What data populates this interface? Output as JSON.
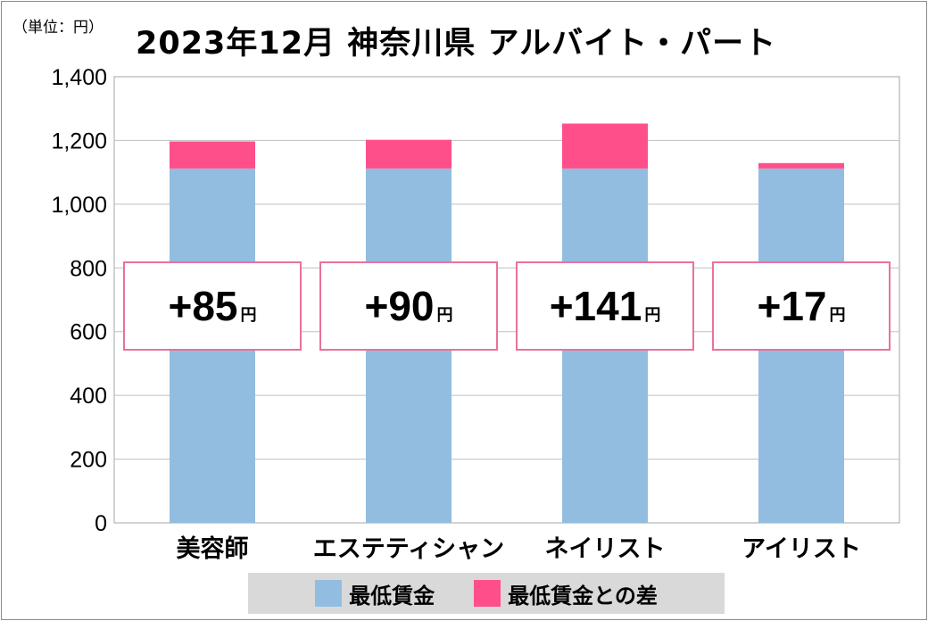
{
  "unit_label": "（単位：円）",
  "title": "2023年12月 神奈川県 アルバイト・パート",
  "colors": {
    "base": "#92bde0",
    "diff": "#ff4f8b",
    "grid": "#bfbfbf",
    "box_border": "#e8729e",
    "legend_bg": "#d9d9d9"
  },
  "chart_data": {
    "type": "bar",
    "stacked": true,
    "title": "2023年12月 神奈川県 アルバイト・パート",
    "ylabel": "（単位：円）",
    "ylim": [
      0,
      1400
    ],
    "yticks": [
      0,
      200,
      400,
      600,
      800,
      1000,
      1200,
      1400
    ],
    "ytick_labels": [
      "0",
      "200",
      "400",
      "600",
      "800",
      "1,000",
      "1,200",
      "1,400"
    ],
    "categories": [
      "美容師",
      "エステティシャン",
      "ネイリスト",
      "アイリスト"
    ],
    "series": [
      {
        "name": "最低賃金",
        "values": [
          1112,
          1112,
          1112,
          1112
        ]
      },
      {
        "name": "最低賃金との差",
        "values": [
          85,
          90,
          141,
          17
        ]
      }
    ],
    "diff_labels": [
      "+85",
      "+90",
      "+141",
      "+17"
    ],
    "diff_unit": "円",
    "grid": true,
    "legend_position": "bottom"
  }
}
